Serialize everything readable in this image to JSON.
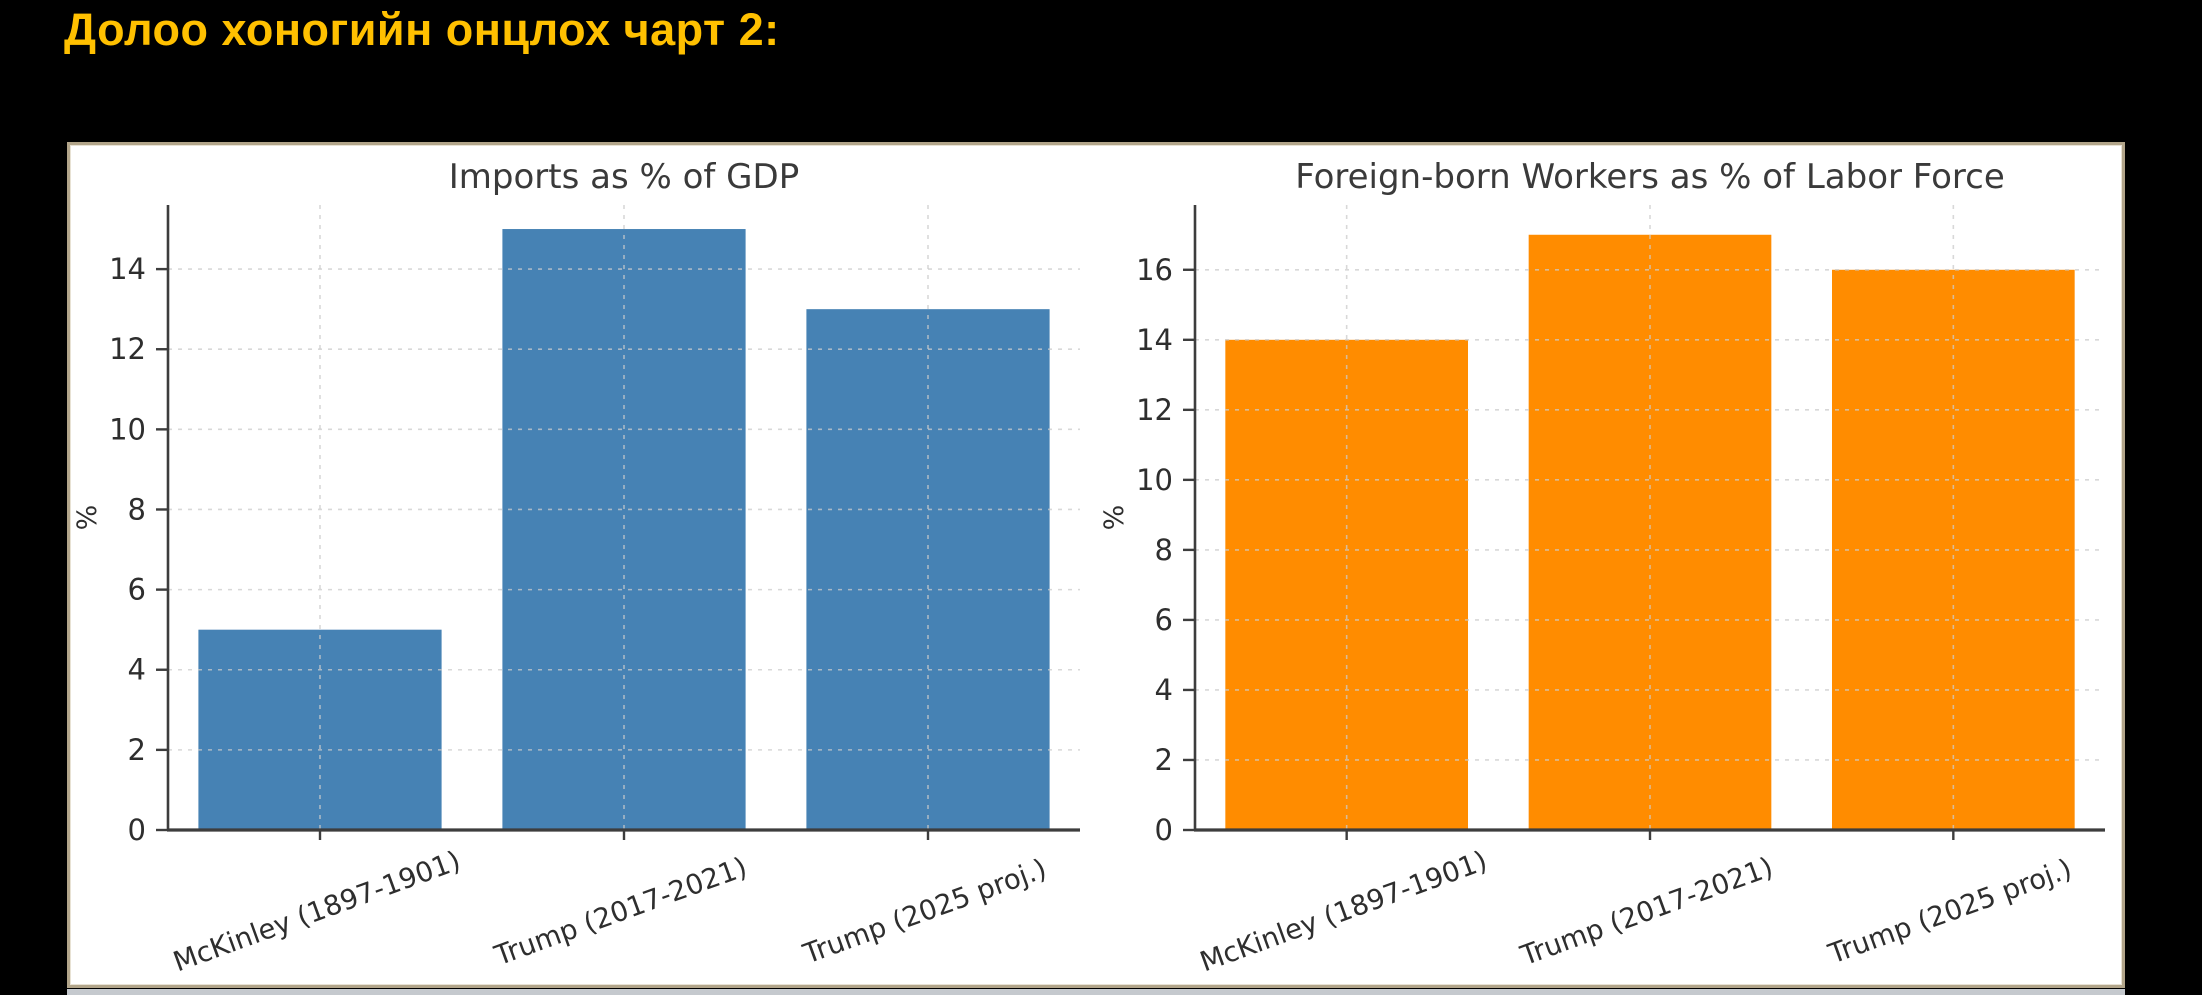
{
  "page": {
    "title": "Долоо хоногийн онцлох чарт 2:",
    "title_color": "#FFC000",
    "background_color": "#000000",
    "panel_background": "#FFFFFF",
    "panel_border_color": "#B2A58A",
    "bottom_strip_color": "#C5C9CE"
  },
  "chart_style": {
    "grid_color": "#CCCCCC",
    "grid_dash": "4 6",
    "spine_color": "#3D3D3D",
    "text_color": "#2E2E2E",
    "title_color": "#3A3A3A"
  },
  "chart_data": [
    {
      "type": "bar",
      "title": "Imports as % of GDP",
      "categories": [
        "McKinley (1897-1901)",
        "Trump (2017-2021)",
        "Trump (2025 proj.)"
      ],
      "values": [
        5,
        15,
        13
      ],
      "bar_color": "#4682B4",
      "xlabel": "",
      "ylabel": "%",
      "yticks": [
        0,
        2,
        4,
        6,
        8,
        10,
        12,
        14
      ],
      "ylim": [
        0,
        15.6
      ],
      "grid": true,
      "legend": "none",
      "x_tick_rotation_deg": 20
    },
    {
      "type": "bar",
      "title": "Foreign-born Workers as % of Labor Force",
      "categories": [
        "McKinley (1897-1901)",
        "Trump (2017-2021)",
        "Trump (2025 proj.)"
      ],
      "values": [
        14,
        17,
        16
      ],
      "bar_color": "#FF8C00",
      "xlabel": "",
      "ylabel": "%",
      "yticks": [
        0,
        2,
        4,
        6,
        8,
        10,
        12,
        14,
        16
      ],
      "ylim": [
        0,
        17.85
      ],
      "grid": true,
      "legend": "none",
      "x_tick_rotation_deg": 20
    }
  ]
}
